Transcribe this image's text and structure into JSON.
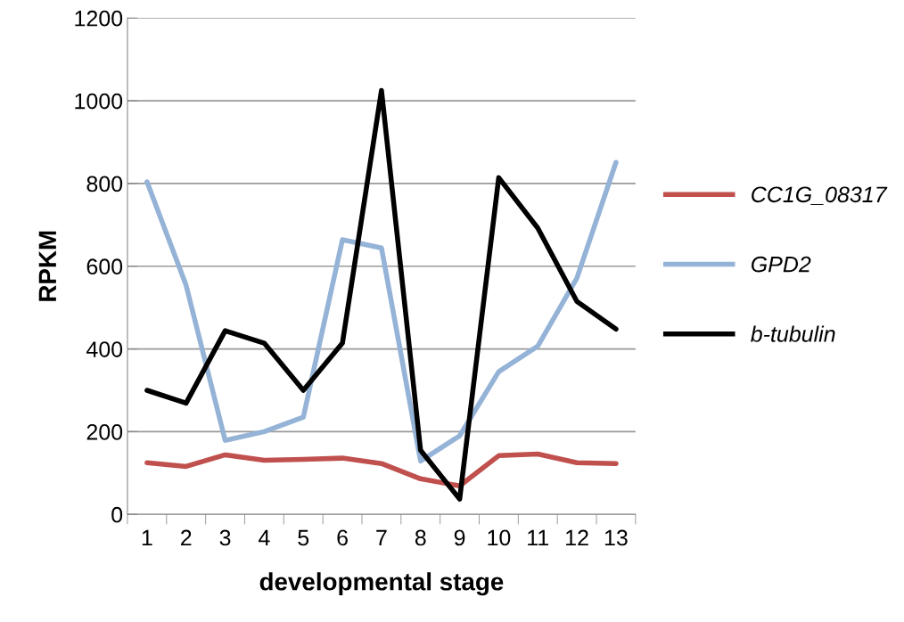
{
  "chart_data": {
    "type": "line",
    "xlabel": "developmental stage",
    "ylabel": "RPKM",
    "categories": [
      "1",
      "2",
      "3",
      "4",
      "5",
      "6",
      "7",
      "8",
      "9",
      "10",
      "11",
      "12",
      "13"
    ],
    "series": [
      {
        "name": "CC1G_08317",
        "color": "#c0504d",
        "values": [
          125,
          116,
          144,
          131,
          133,
          136,
          123,
          86,
          69,
          142,
          146,
          125,
          123
        ]
      },
      {
        "name": "GPD2",
        "color": "#95b3d7",
        "values": [
          804,
          554,
          179,
          200,
          235,
          664,
          644,
          129,
          190,
          345,
          407,
          571,
          851
        ]
      },
      {
        "name": "b-tubulin",
        "color": "#000000",
        "values": [
          300,
          269,
          444,
          414,
          300,
          414,
          1025,
          155,
          37,
          814,
          692,
          515,
          448
        ]
      }
    ],
    "ylim": [
      0,
      1200
    ],
    "yticks": [
      0,
      200,
      400,
      600,
      800,
      1000,
      1200
    ],
    "grid": "y",
    "legend": "right",
    "marker": "none",
    "line_style": "solid"
  }
}
